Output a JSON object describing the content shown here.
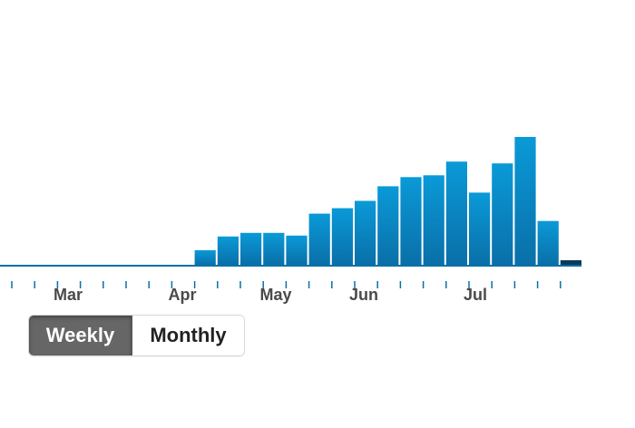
{
  "chart_data": {
    "type": "bar",
    "title": "",
    "xlabel": "",
    "ylabel": "",
    "month_labels": [
      "Mar",
      "Apr",
      "May",
      "Jun",
      "Jul"
    ],
    "weeks_per_month_gap": 4,
    "values": [
      0,
      0,
      0,
      0,
      0,
      0,
      0,
      0,
      16,
      31,
      35,
      35,
      32,
      56,
      62,
      70,
      86,
      96,
      98,
      113,
      79,
      111,
      140,
      48,
      5
    ],
    "ylim": [
      0,
      150
    ],
    "grid": false,
    "colors": {
      "bar_top": "#0a9ad8",
      "bar_bottom": "#0a6fa8",
      "baseline": "#0a6fa8",
      "last_bar": "#0b3a5a",
      "tick": "#0a6fa8"
    }
  },
  "toggle": {
    "options": [
      "Weekly",
      "Monthly"
    ],
    "selected": "Weekly"
  }
}
